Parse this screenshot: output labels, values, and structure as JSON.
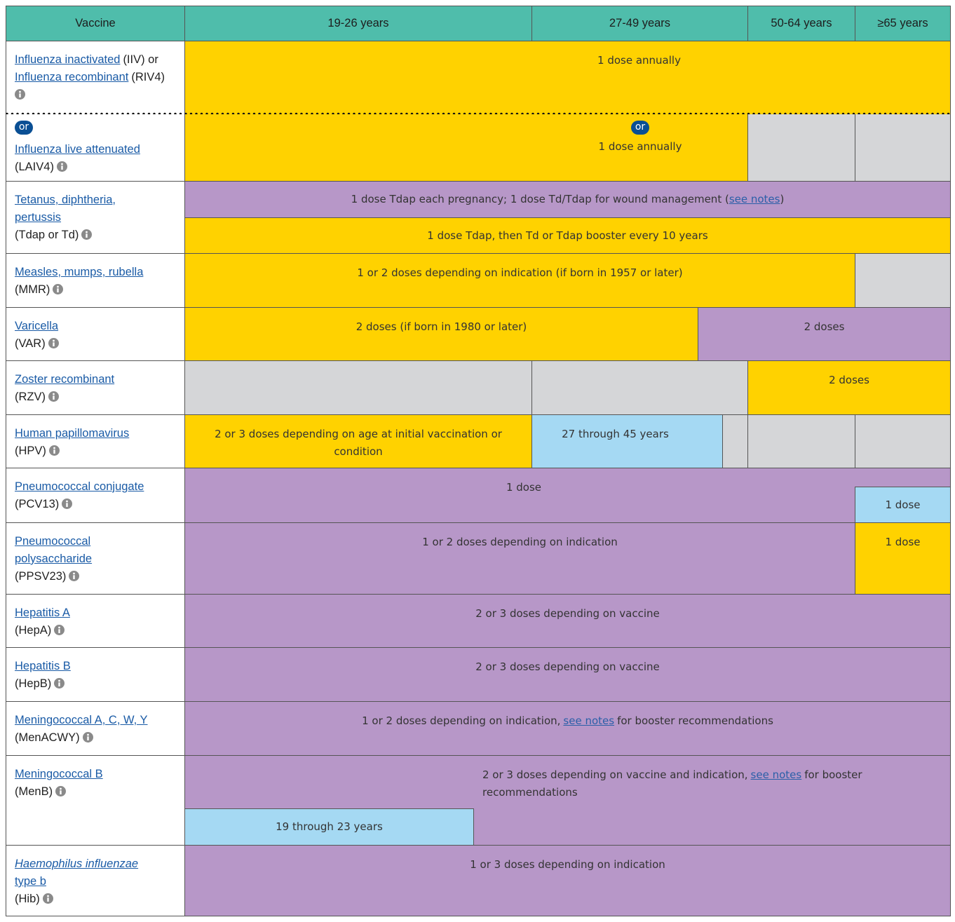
{
  "header": {
    "vaccine": "Vaccine",
    "ages": [
      "19-26 years",
      "27-49 years",
      "50-64 years",
      "≥65 years"
    ]
  },
  "rows": [
    {
      "name": "Influenza inactivated",
      "abbr": "(IIV) or",
      "name2": "Influenza recombinant",
      "abbr2": "(RIV4)",
      "doses": [
        "1 dose annually"
      ]
    },
    {
      "or": "or",
      "name": "Influenza live attenuated",
      "abbr": "(LAIV4)",
      "dose_or": "or",
      "doses": [
        "1 dose annually"
      ]
    },
    {
      "name": "Tetanus, diphtheria, pertussis",
      "abbr": "(Tdap or Td)",
      "doses": [
        {
          "text": "1 dose Tdap each pregnancy; 1 dose Td/Tdap for wound management (",
          "link": "see notes",
          "after": ")"
        },
        "1 dose Tdap, then Td or Tdap booster every 10 years"
      ]
    },
    {
      "name": "Measles, mumps, rubella",
      "abbr": "(MMR)",
      "doses": [
        "1 or 2 doses depending on indication (if born in 1957 or later)"
      ]
    },
    {
      "name": "Varicella",
      "abbr": "(VAR)",
      "doses": [
        "2 doses (if born in 1980 or later)",
        "2 doses"
      ]
    },
    {
      "name": "Zoster recombinant",
      "abbr": "(RZV)",
      "doses": [
        "2 doses"
      ]
    },
    {
      "name": "Human papillomavirus",
      "abbr": "(HPV)",
      "doses": [
        "2 or 3 doses depending on age at initial vaccination or condition",
        "27 through 45 years"
      ]
    },
    {
      "name": "Pneumococcal conjugate",
      "abbr": "(PCV13)",
      "doses": [
        "1 dose",
        "1 dose"
      ]
    },
    {
      "name": "Pneumococcal polysaccharide",
      "abbr": "(PPSV23)",
      "doses": [
        "1 or 2 doses depending on indication",
        "1 dose"
      ]
    },
    {
      "name": "Hepatitis A",
      "abbr": "(HepA)",
      "doses": [
        "2 or 3 doses depending on vaccine"
      ]
    },
    {
      "name": "Hepatitis B",
      "abbr": "(HepB)",
      "doses": [
        "2 or 3 doses depending on vaccine"
      ]
    },
    {
      "name": "Meningococcal A, C, W, Y",
      "abbr": "(MenACWY)",
      "doses": [
        {
          "text": "1 or 2 doses depending on indication,",
          "link": "see notes",
          "after": "for booster recommendations"
        }
      ]
    },
    {
      "name": "Meningococcal B",
      "abbr": "(MenB)",
      "doses": [
        {
          "text": "2 or 3 doses depending on vaccine and indication,",
          "link": "see notes",
          "after": "for booster recommendations"
        },
        "19 through 23 years"
      ]
    },
    {
      "name": "Haemophilus influenzae",
      "name_rest": "type b",
      "abbr": "(Hib)",
      "doses": [
        "1 or 3 doses depending on indication"
      ]
    }
  ]
}
